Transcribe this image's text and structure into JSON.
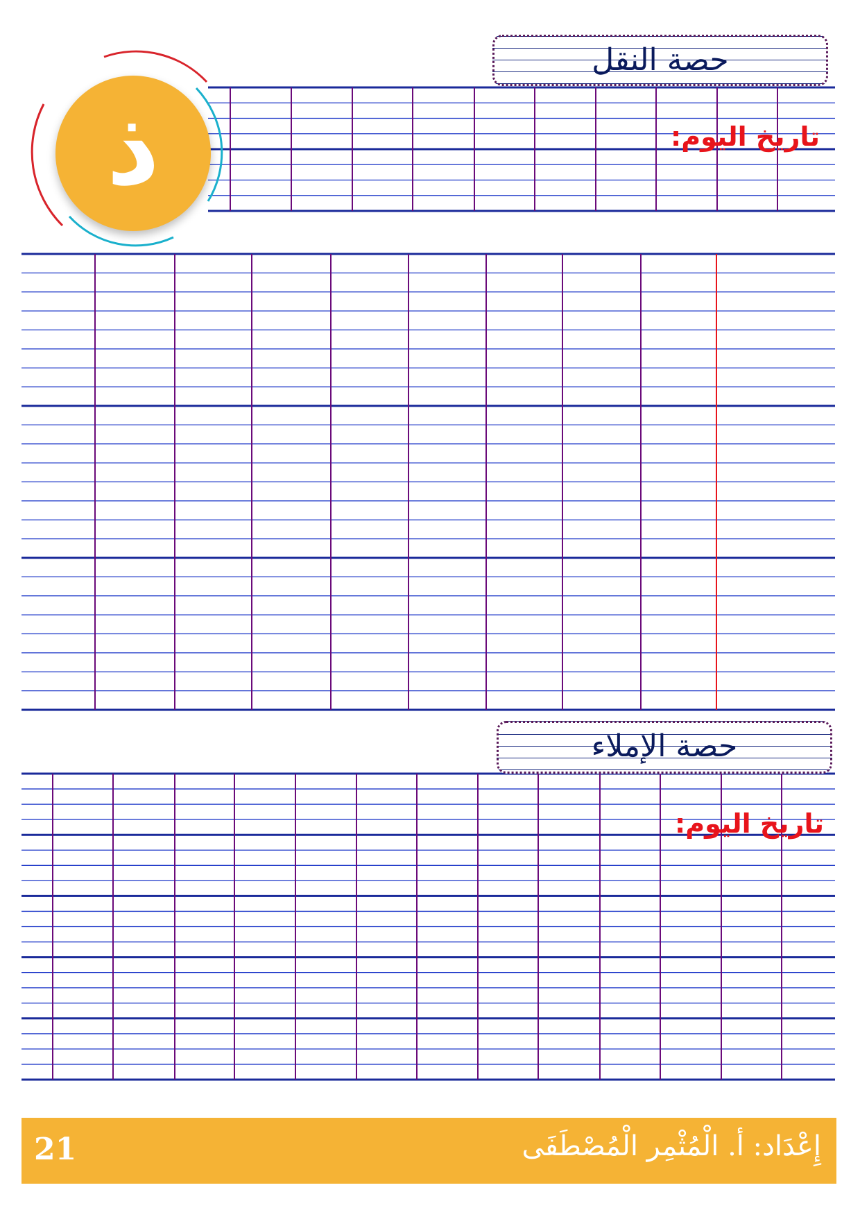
{
  "letter": "ذ",
  "copy_section": {
    "title": "حصة النقل",
    "date_label": "تاريخ اليوم:"
  },
  "dictation_section": {
    "title": "حصة الإملاء",
    "date_label": "تاريخ اليوم:"
  },
  "footer": {
    "author": "إِعْدَاد: أ. الْمُثْمِر الْمُصْطَفَى",
    "page_number": "21"
  },
  "colors": {
    "accent": "#f5b335",
    "line": "#1a35c8",
    "column": "#6a0a7a",
    "margin": "#e8141b",
    "date": "#e8141b"
  }
}
